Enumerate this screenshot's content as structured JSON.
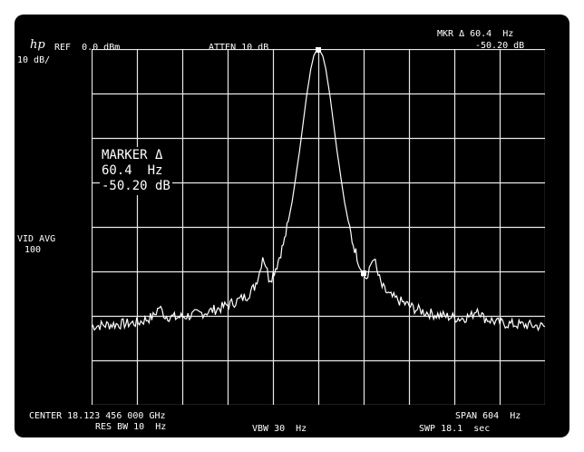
{
  "brand": {
    "logo_text": "hp"
  },
  "header": {
    "ref": "REF  0.0 dBm",
    "atten": "ATTEN 10 dB",
    "marker_delta_freq": "MKR Δ 60.4  Hz",
    "marker_delta_amp": "-50.20 dB"
  },
  "left_annotations": {
    "scale": "10 dB/",
    "video_avg_label": "VID AVG",
    "video_avg_count": "100"
  },
  "marker_readout": {
    "title": "MARKER Δ",
    "freq": "60.4  Hz",
    "amp": "-50.20 dB"
  },
  "footer": {
    "center": "CENTER 18.123 456 000 GHz",
    "span": "SPAN 604  Hz",
    "res_bw": "RES BW 10  Hz",
    "vbw": "VBW 30  Hz",
    "sweep": "SWP 18.1  sec"
  },
  "display": {
    "background": "#000000",
    "trace_color": "#ffffff",
    "grid_color": "#e8e8e8",
    "grid_divisions_x": 10,
    "grid_divisions_y": 8
  },
  "chart_data": {
    "type": "line",
    "x_unit": "Hz offset from center",
    "y_unit": "dB relative to reference",
    "xlim": [
      -302,
      302
    ],
    "ylim": [
      -80,
      0
    ],
    "series": [
      {
        "values": [
          [
            -302,
            -62.3
          ],
          [
            -280,
            -62.0
          ],
          [
            -260,
            -61.8
          ],
          [
            -240,
            -61.5
          ],
          [
            -220,
            -60.2
          ],
          [
            -212,
            -58.0
          ],
          [
            -204,
            -60.0
          ],
          [
            -190,
            -60.4
          ],
          [
            -170,
            -59.9
          ],
          [
            -150,
            -59.2
          ],
          [
            -130,
            -58.2
          ],
          [
            -110,
            -56.8
          ],
          [
            -95,
            -55.5
          ],
          [
            -85,
            -53.5
          ],
          [
            -78,
            -50.0
          ],
          [
            -74,
            -46.5
          ],
          [
            -70,
            -48.5
          ],
          [
            -66,
            -51.5
          ],
          [
            -62,
            -51.2
          ],
          [
            -55,
            -48.5
          ],
          [
            -45,
            -43.0
          ],
          [
            -35,
            -34.5
          ],
          [
            -25,
            -23.0
          ],
          [
            -16,
            -11.0
          ],
          [
            -10,
            -4.5
          ],
          [
            -6,
            -1.5
          ],
          [
            -2,
            -0.2
          ],
          [
            2,
            -0.3
          ],
          [
            6,
            -1.6
          ],
          [
            10,
            -4.5
          ],
          [
            16,
            -11.0
          ],
          [
            25,
            -23.0
          ],
          [
            35,
            -34.5
          ],
          [
            45,
            -43.0
          ],
          [
            55,
            -48.5
          ],
          [
            62,
            -51.2
          ],
          [
            66,
            -51.5
          ],
          [
            70,
            -48.5
          ],
          [
            74,
            -46.5
          ],
          [
            78,
            -50.0
          ],
          [
            85,
            -53.5
          ],
          [
            95,
            -55.5
          ],
          [
            110,
            -56.8
          ],
          [
            130,
            -58.5
          ],
          [
            150,
            -59.5
          ],
          [
            170,
            -60.1
          ],
          [
            190,
            -60.6
          ],
          [
            204,
            -60.0
          ],
          [
            212,
            -58.2
          ],
          [
            220,
            -60.4
          ],
          [
            240,
            -61.6
          ],
          [
            260,
            -61.9
          ],
          [
            280,
            -62.1
          ],
          [
            302,
            -62.4
          ]
        ]
      }
    ],
    "markers": [
      {
        "x": 0,
        "y": -0.2
      },
      {
        "x": 60.4,
        "y": -50.4
      }
    ],
    "grid": true
  }
}
